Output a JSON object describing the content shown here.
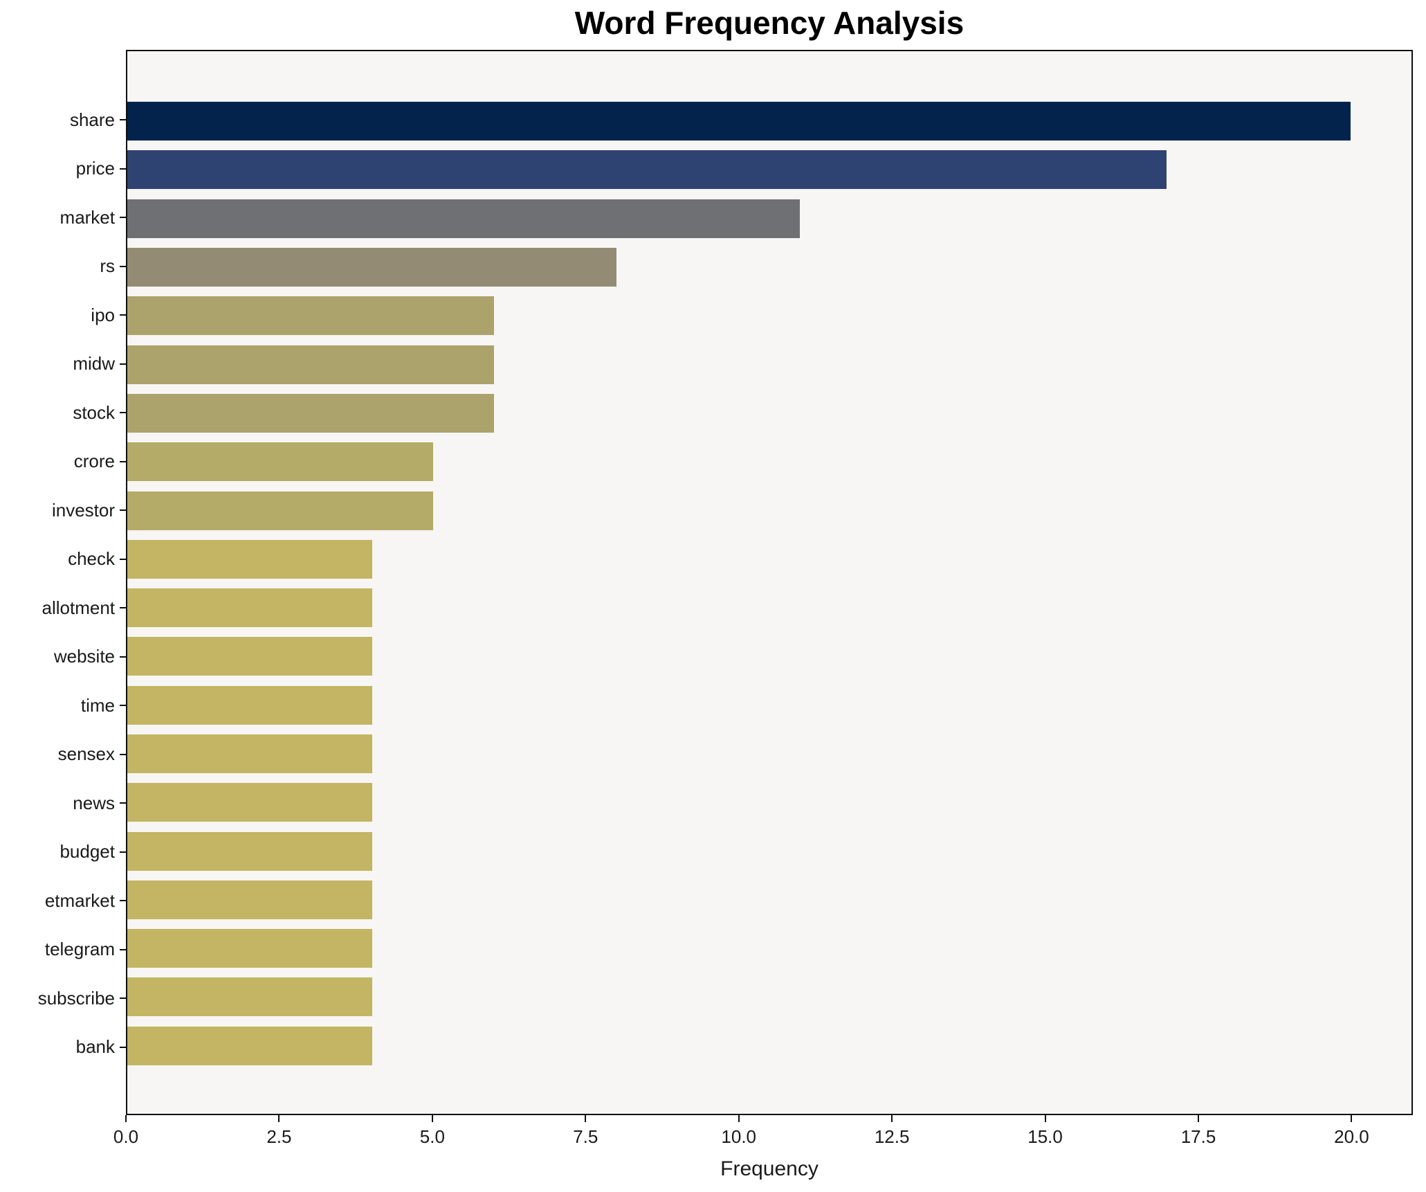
{
  "title": "Word Frequency Analysis",
  "chart_data": {
    "type": "bar",
    "orientation": "horizontal",
    "title": "Word Frequency Analysis",
    "xlabel": "Frequency",
    "ylabel": "",
    "categories": [
      "share",
      "price",
      "market",
      "rs",
      "ipo",
      "midw",
      "stock",
      "crore",
      "investor",
      "check",
      "allotment",
      "website",
      "time",
      "sensex",
      "news",
      "budget",
      "etmarket",
      "telegram",
      "subscribe",
      "bank"
    ],
    "values": [
      20,
      17,
      11,
      8,
      6,
      6,
      6,
      5,
      5,
      4,
      4,
      4,
      4,
      4,
      4,
      4,
      4,
      4,
      4,
      4
    ],
    "bar_colors": [
      "#03234d",
      "#2e4372",
      "#6f7073",
      "#938b73",
      "#aca26b",
      "#aca26b",
      "#aca26b",
      "#b5ab68",
      "#b5ab68",
      "#c3b563",
      "#c3b563",
      "#c3b563",
      "#c3b563",
      "#c3b563",
      "#c3b563",
      "#c3b563",
      "#c3b563",
      "#c3b563",
      "#c3b563",
      "#c3b563"
    ],
    "xlim": [
      0,
      21
    ],
    "xticks": [
      0.0,
      2.5,
      5.0,
      7.5,
      10.0,
      12.5,
      15.0,
      17.5,
      20.0
    ],
    "xtick_labels": [
      "0.0",
      "2.5",
      "5.0",
      "7.5",
      "10.0",
      "12.5",
      "15.0",
      "17.5",
      "20.0"
    ],
    "grid": false,
    "legend": false,
    "plot_bg": "#f7f6f4",
    "fig_bg": "#ffffff",
    "spine_color": "#0f0f0f"
  }
}
